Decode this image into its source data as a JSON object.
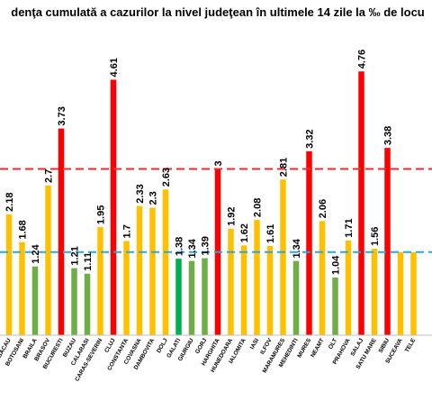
{
  "chart_data": {
    "type": "bar",
    "title": "denţa cumulată a cazurilor la nivel judeţean în ultimele 14 zile la ‰ de locu",
    "categories": [
      "BACAU",
      "BOTOSANI",
      "BRAILA",
      "BRASOV",
      "BUCURESTI",
      "BUZAU",
      "CALARASI",
      "CARAS-SEVERIN",
      "CLUJ",
      "CONSTANTA",
      "COVASNA",
      "DAMBOVITA",
      "DOLJ",
      "GALATI",
      "GIURGIU",
      "GORJ",
      "HARGHITA",
      "HUNEDOARA",
      "IALOMITA",
      "IASI",
      "ILFOV",
      "MARAMURES",
      "MEHEDINTI",
      "MURES",
      "NEAMT",
      "OLT",
      "PRAHOVA",
      "SALAJ",
      "SATU MARE",
      "SIBIU",
      "SUCEAVA",
      "TELE"
    ],
    "values": [
      2.18,
      1.68,
      1.24,
      2.7,
      3.73,
      1.21,
      1.11,
      1.95,
      4.61,
      1.7,
      2.33,
      2.3,
      2.63,
      1.38,
      1.34,
      1.39,
      3.0,
      1.92,
      1.62,
      2.08,
      1.61,
      2.81,
      1.34,
      3.32,
      2.06,
      1.04,
      1.71,
      4.76,
      1.56,
      3.38,
      1.5,
      1.5
    ],
    "value_labels": [
      "2.18",
      "1.68",
      "1.24",
      "2.7",
      "3.73",
      "1.21",
      "1.11",
      "1.95",
      "4.61",
      "1.7",
      "2.33",
      "2.3",
      "2.63",
      "1.38",
      "1.34",
      "1.39",
      "3",
      "1.92",
      "1.62",
      "2.08",
      "1.61",
      "2.81",
      "1.34",
      "3.32",
      "2.06",
      "1.04",
      "1.71",
      "4.76",
      "1.56",
      "3.38",
      "",
      ""
    ],
    "bar_colors": [
      "#FFC000",
      "#FFC000",
      "#70AD47",
      "#FFC000",
      "#FF0000",
      "#70AD47",
      "#70AD47",
      "#FFC000",
      "#FF0000",
      "#FFC000",
      "#FFC000",
      "#FFC000",
      "#FFC000",
      "#00B050",
      "#70AD47",
      "#70AD47",
      "#FF0000",
      "#FFC000",
      "#FFC000",
      "#FFC000",
      "#FFC000",
      "#FFC000",
      "#70AD47",
      "#FF0000",
      "#FFC000",
      "#70AD47",
      "#FFC000",
      "#FF0000",
      "#FFC000",
      "#FF0000",
      "#FFC000",
      "#FFC000"
    ],
    "reference_lines": [
      {
        "value": 3.0,
        "color": "#E03030",
        "style": "dashed"
      },
      {
        "value": 1.5,
        "color": "#2AA8D8",
        "style": "dashed"
      }
    ],
    "ylim": [
      0,
      5.3
    ],
    "grid": false,
    "legend": "none"
  }
}
